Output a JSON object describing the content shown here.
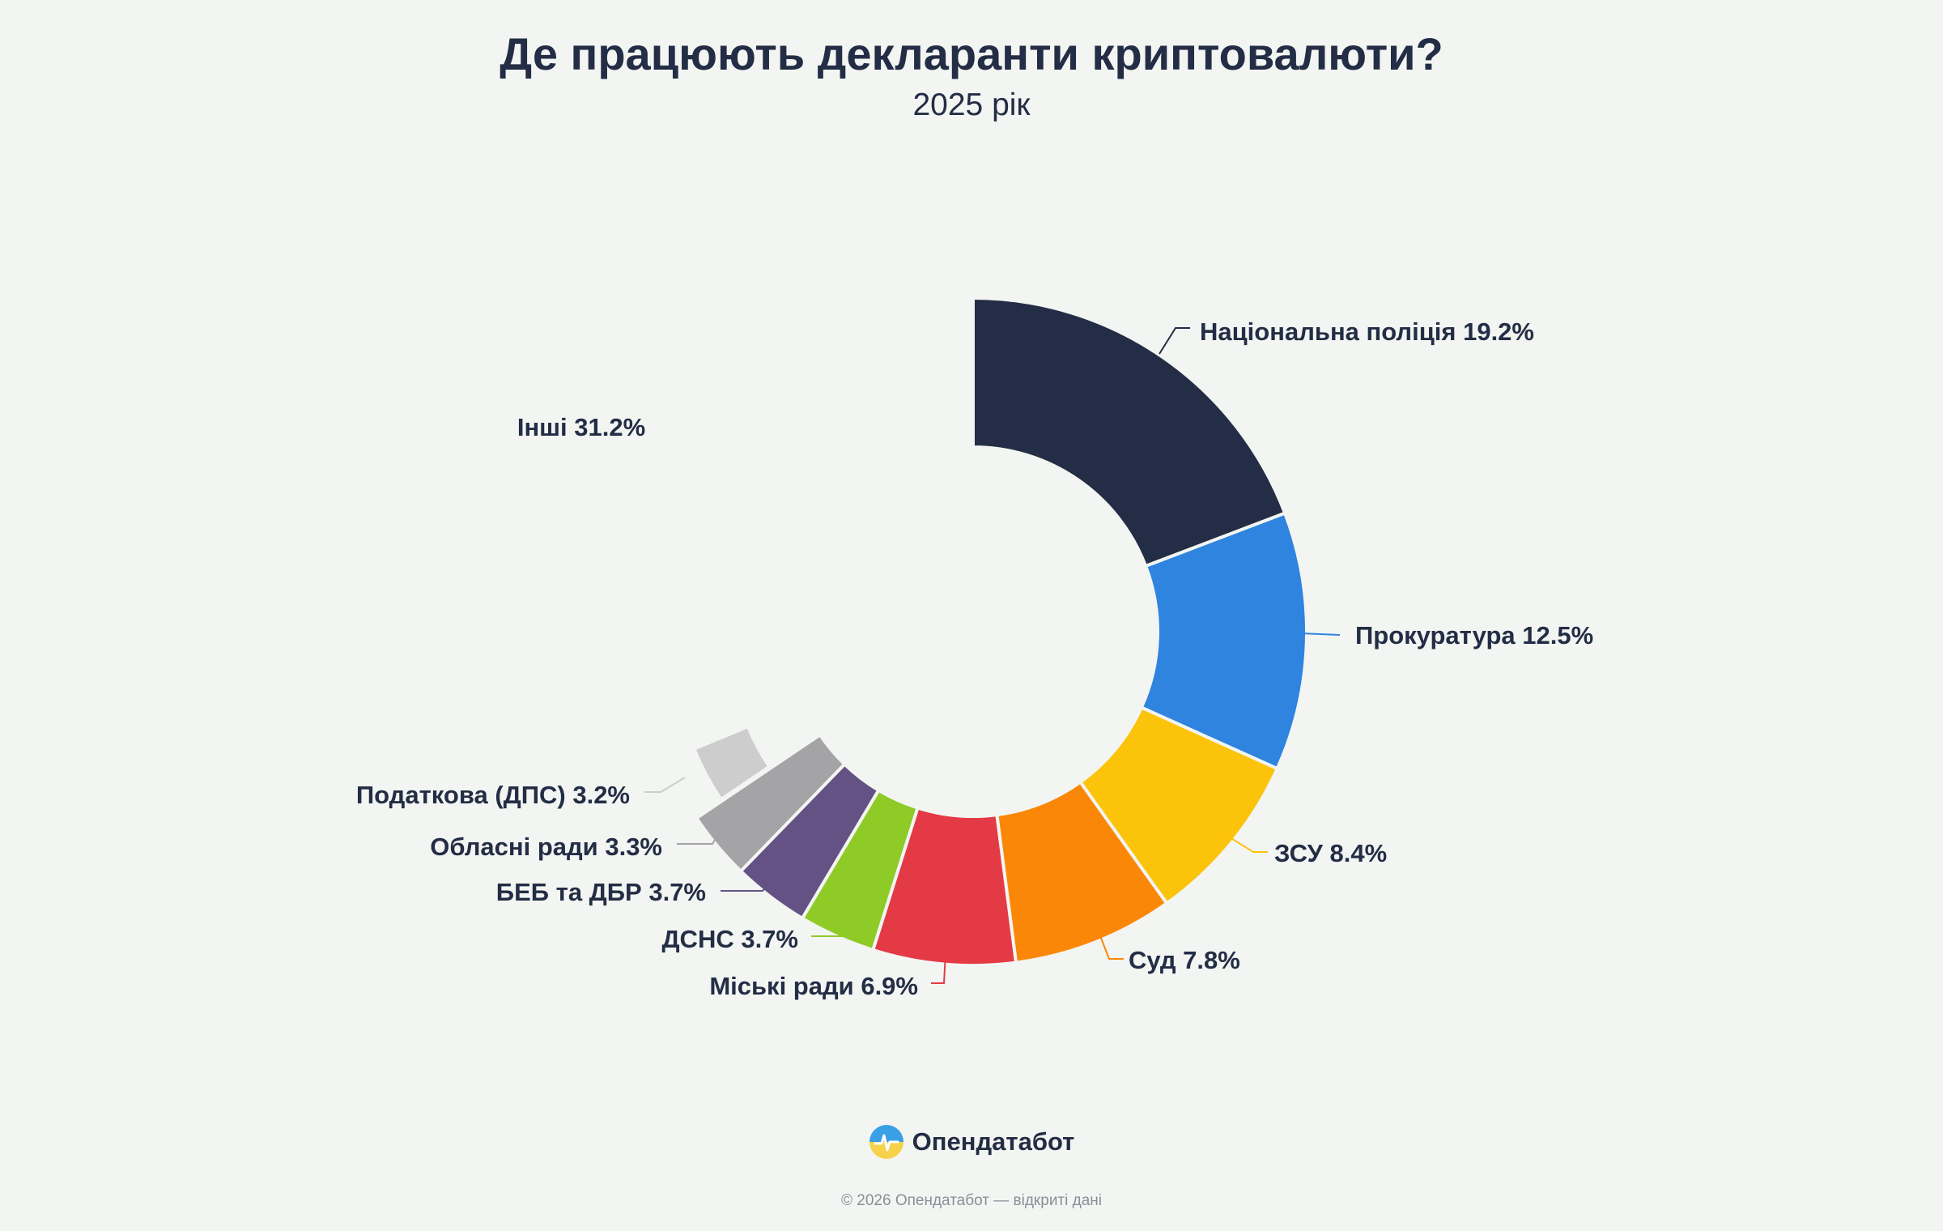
{
  "header": {
    "title": "Де працюють декларанти криптовалюти?",
    "subtitle": "2025 рік"
  },
  "chart_data": {
    "type": "pie",
    "title": "Де працюють декларанти криптовалюти?",
    "subtitle": "2025 рік",
    "unit": "%",
    "slices": [
      {
        "label": "Національна поліція",
        "value": 19.2,
        "text": "Національна поліція 19.2%",
        "color": "#232d45"
      },
      {
        "label": "Прокуратура",
        "value": 12.5,
        "text": "Прокуратура 12.5%",
        "color": "#2e84de"
      },
      {
        "label": "ЗСУ",
        "value": 8.4,
        "text": "ЗСУ 8.4%",
        "color": "#fcc30b"
      },
      {
        "label": "Суд",
        "value": 7.8,
        "text": "Суд 7.8%",
        "color": "#fb8709"
      },
      {
        "label": "Міські ради",
        "value": 6.9,
        "text": "Міські ради 6.9%",
        "color": "#e43a45"
      },
      {
        "label": "ДСНС",
        "value": 3.7,
        "text": "ДСНС 3.7%",
        "color": "#8ecb26"
      },
      {
        "label": "БЕБ та ДБР",
        "value": 3.7,
        "text": "БЕБ та ДБР 3.7%",
        "color": "#645285"
      },
      {
        "label": "Обласні ради",
        "value": 3.3,
        "text": "Обласні ради 3.3%",
        "color": "#a4a3a6"
      },
      {
        "label": "Податкова (ДПС)",
        "value": 3.2,
        "text": "Податкова (ДПС) 3.2%",
        "color": "#cccdcc"
      },
      {
        "label": "Інші",
        "value": 31.2,
        "text": "Інші 31.2%",
        "color": "none"
      }
    ]
  },
  "brand": {
    "name": "Опендатабот",
    "logo_icon": "opendatabot-logo-icon"
  },
  "footer": {
    "text": "© 2026 Опендатабот — відкриті дані"
  }
}
